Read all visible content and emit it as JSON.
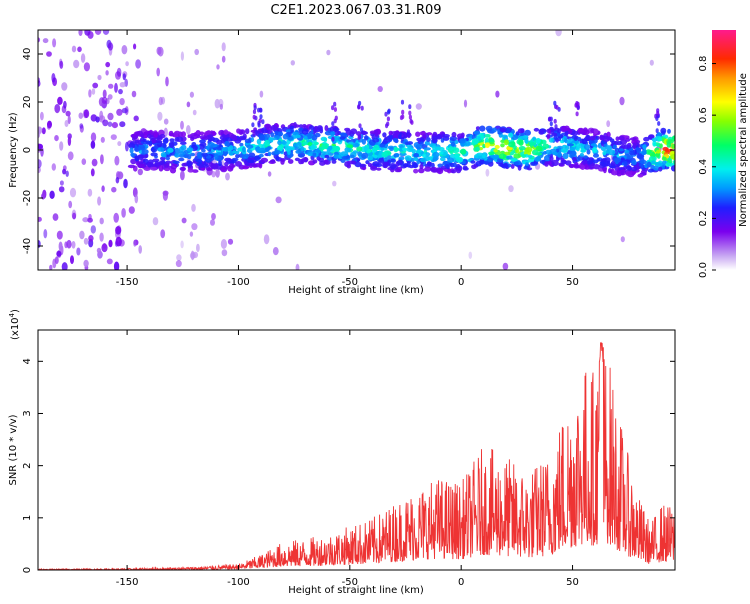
{
  "title": "C2E1.2023.067.03.31.R09",
  "chart_data": [
    {
      "type": "heatmap",
      "xlabel": "Height of straight line (km)",
      "ylabel": "Frequency (Hz)",
      "xlim": [
        -190,
        96
      ],
      "ylim": [
        -50,
        50
      ],
      "xticks": [
        -150,
        -100,
        -50,
        0,
        50
      ],
      "yticks": [
        -40,
        -20,
        0,
        20,
        40
      ],
      "colorbar": {
        "label": "Normalized spectral amplitude",
        "range": [
          0,
          0.93
        ],
        "ticks": [
          0.0,
          0.2,
          0.4,
          0.6,
          0.8
        ]
      },
      "ridge": {
        "x": [
          -146,
          -120,
          -100,
          -80,
          -60,
          -40,
          -20,
          0,
          10,
          20,
          30,
          40,
          50,
          60,
          70,
          80,
          90,
          96
        ],
        "freq": [
          0,
          -1,
          0,
          3,
          2,
          0,
          -1,
          -1,
          2,
          1,
          0,
          2,
          1,
          0,
          -2,
          -3,
          0,
          0
        ],
        "amplitude": [
          0.3,
          0.35,
          0.35,
          0.45,
          0.5,
          0.45,
          0.4,
          0.5,
          0.7,
          0.7,
          0.65,
          0.45,
          0.4,
          0.35,
          0.35,
          0.3,
          0.85,
          0.9
        ]
      }
    },
    {
      "type": "line",
      "xlabel": "Height of straight line (km)",
      "ylabel": "SNR (10 * v/v)",
      "yscale_label": "(x10",
      "yscale_exp": "4",
      "yscale_close": ")",
      "xlim": [
        -190,
        96
      ],
      "ylim": [
        0,
        4.6
      ],
      "xticks": [
        -150,
        -100,
        -50,
        0,
        50
      ],
      "yticks": [
        0,
        1,
        2,
        3,
        4
      ],
      "color": "#ee3333",
      "envelope": {
        "x": [
          -190,
          -150,
          -120,
          -100,
          -90,
          -80,
          -70,
          -60,
          -50,
          -40,
          -30,
          -20,
          -10,
          0,
          10,
          20,
          30,
          40,
          45,
          50,
          55,
          60,
          63,
          66,
          70,
          75,
          80,
          85,
          90,
          96
        ],
        "y": [
          0.02,
          0.03,
          0.06,
          0.12,
          0.3,
          0.55,
          0.6,
          0.7,
          0.85,
          1.0,
          1.3,
          1.6,
          1.8,
          1.7,
          2.4,
          2.2,
          1.9,
          2.3,
          3.0,
          3.6,
          4.0,
          3.9,
          4.5,
          4.2,
          3.2,
          2.2,
          1.4,
          0.9,
          1.3,
          1.2
        ]
      }
    }
  ]
}
